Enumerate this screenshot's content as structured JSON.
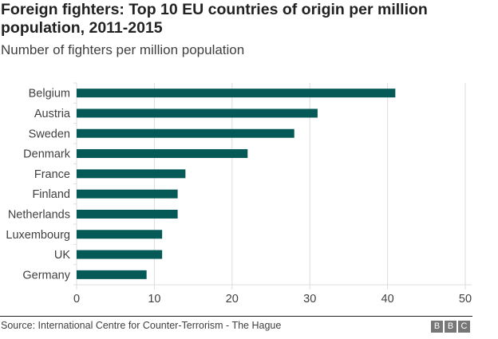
{
  "chart_data": {
    "type": "bar",
    "orientation": "horizontal",
    "title": "Foreign fighters: Top 10 EU countries of origin per million population, 2011-2015",
    "subtitle": "Number of fighters per million population",
    "categories": [
      "Belgium",
      "Austria",
      "Sweden",
      "Denmark",
      "France",
      "Finland",
      "Netherlands",
      "Luxembourg",
      "UK",
      "Germany"
    ],
    "values": [
      41,
      31,
      28,
      22,
      14,
      13,
      13,
      11,
      11,
      9
    ],
    "xlabel": "",
    "ylabel": "",
    "xlim": [
      0,
      50
    ],
    "xticks": [
      0,
      10,
      20,
      30,
      40,
      50
    ],
    "grid": true,
    "bar_color": "#055a58",
    "source": "Source: International Centre for Counter-Terrorism - The Hague"
  },
  "branding": {
    "letters": [
      "B",
      "B",
      "C"
    ]
  }
}
